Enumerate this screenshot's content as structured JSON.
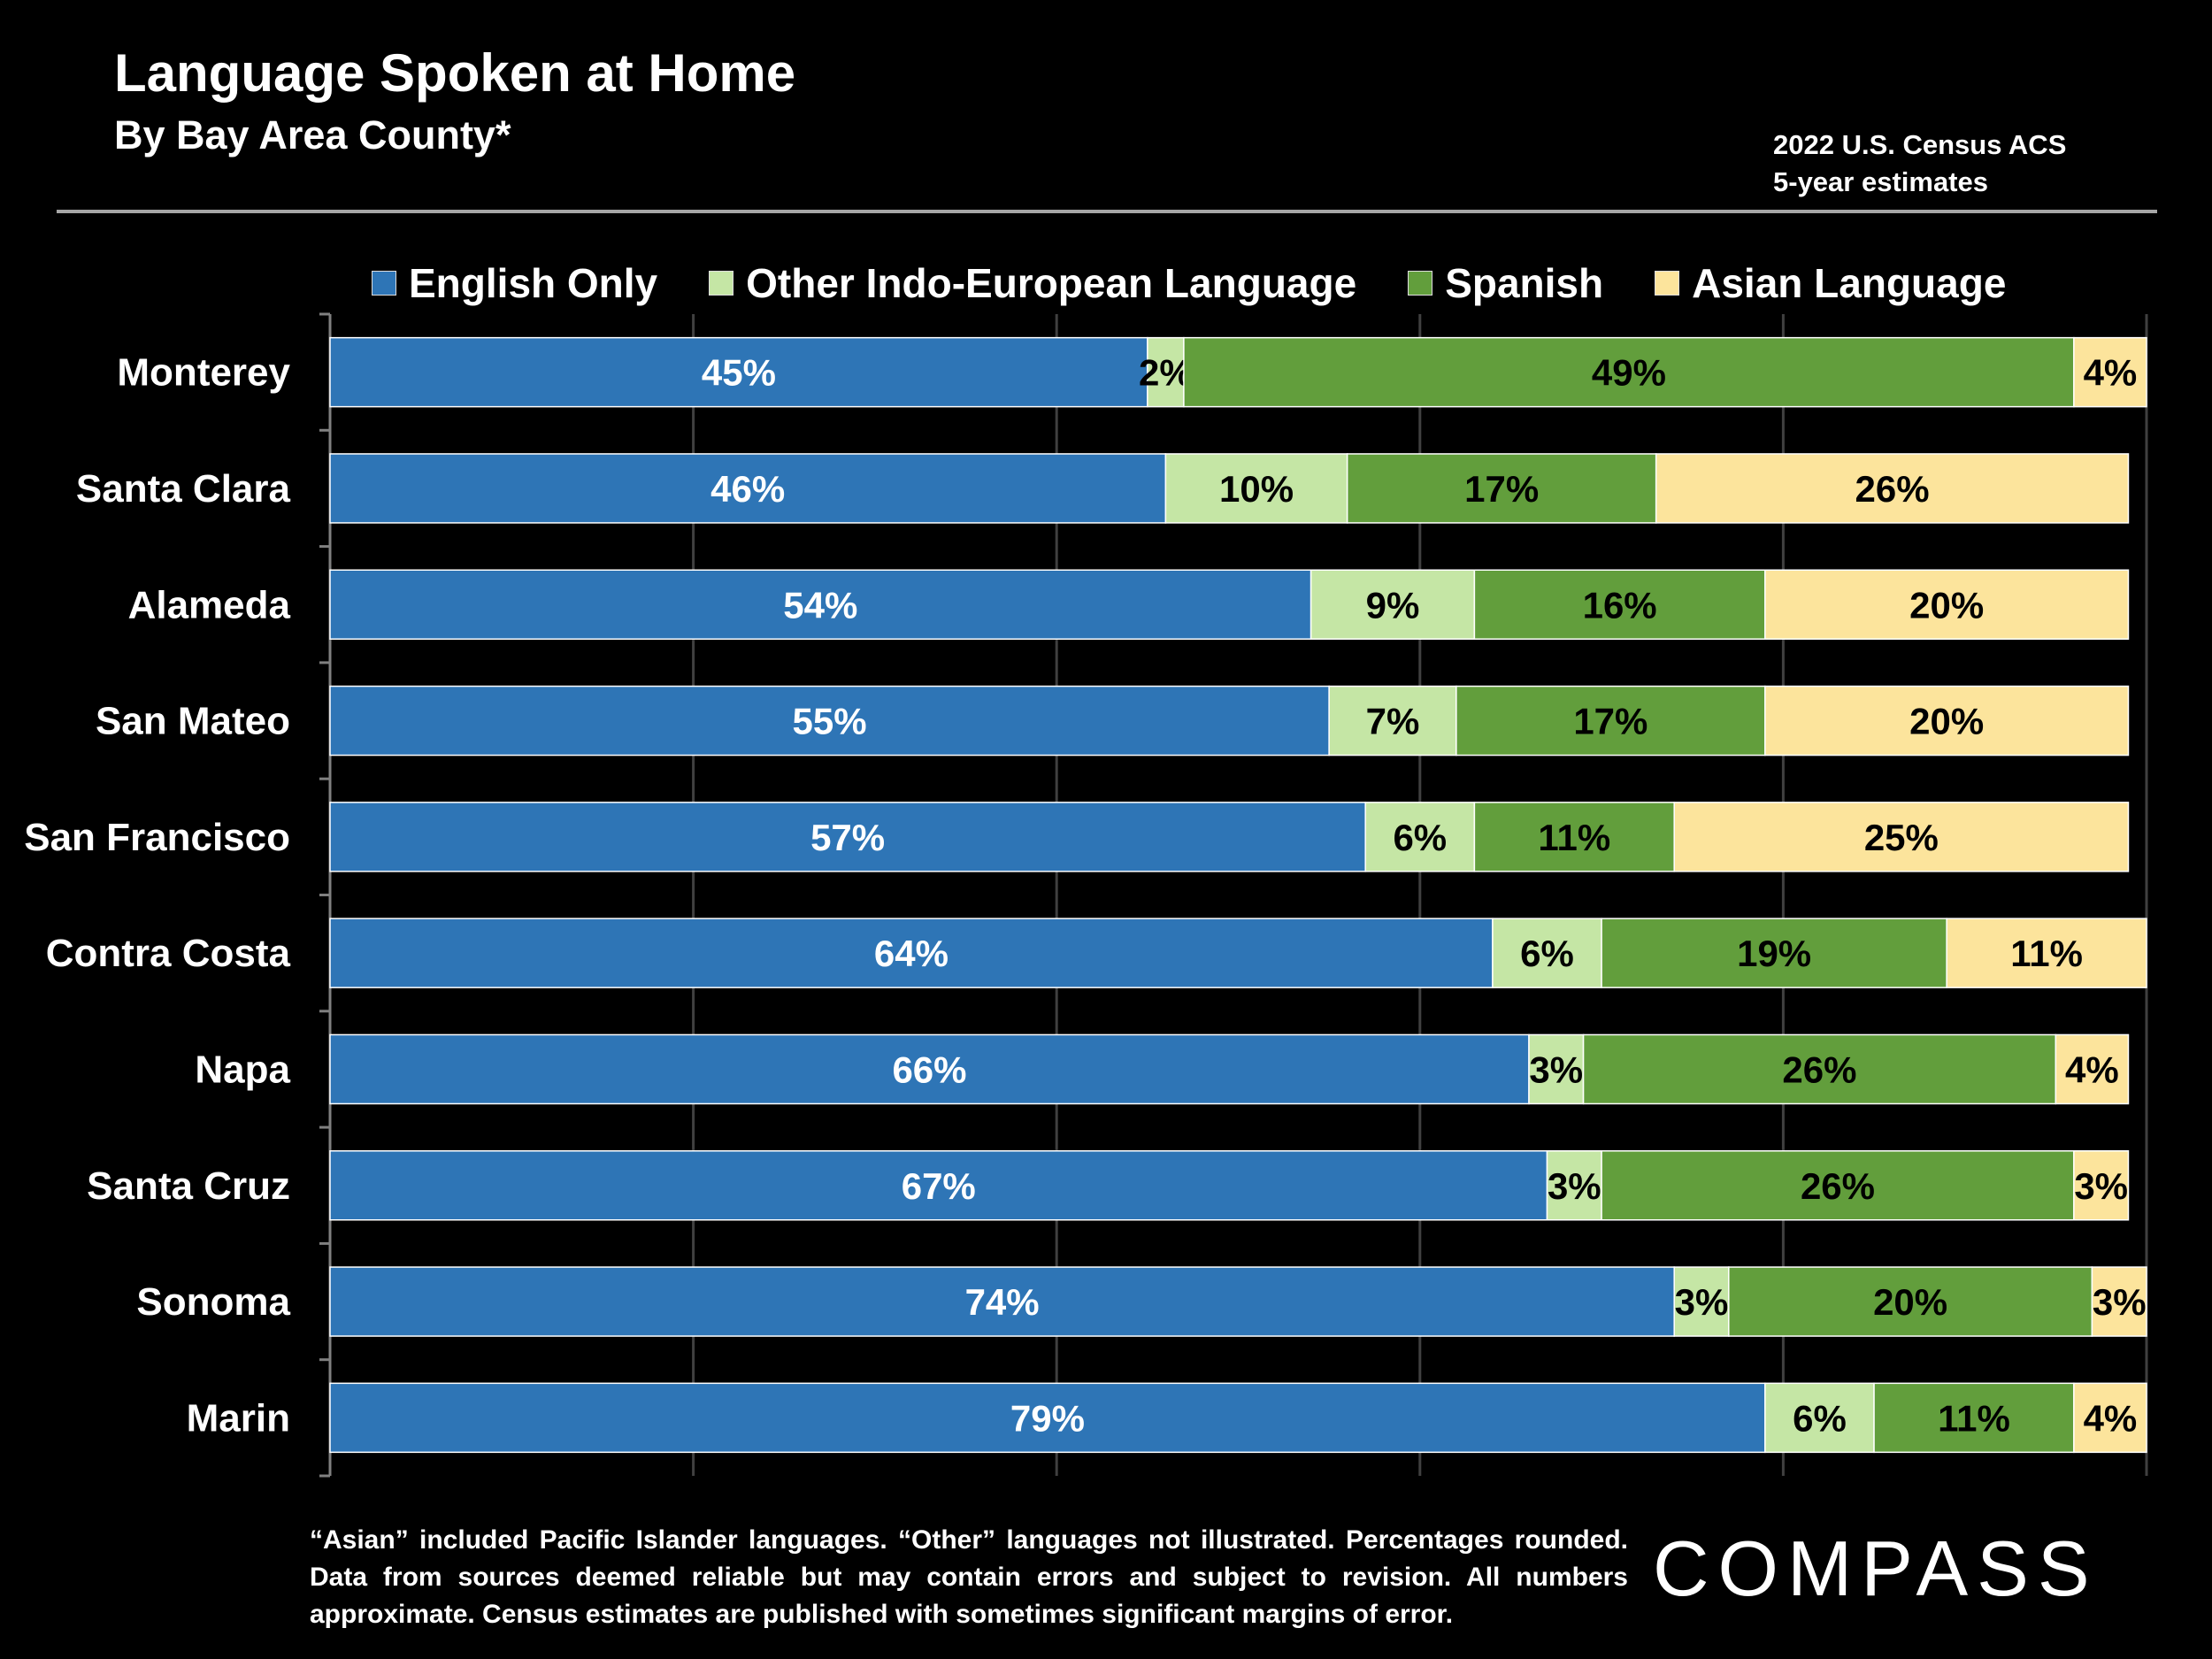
{
  "header": {
    "title": "Language Spoken at Home",
    "subtitle": "By Bay Area County*",
    "source_line1": "2022 U.S. Census ACS",
    "source_line2": "5-year estimates"
  },
  "colors": {
    "english": "#2e75b6",
    "other_indo_european": "#c5e6a5",
    "spanish": "#629e3c",
    "asian": "#fce49c",
    "gridline": "#404040",
    "axis": "#808080"
  },
  "chart_data": {
    "type": "bar",
    "orientation": "horizontal-stacked",
    "title": "Language Spoken at Home",
    "subtitle": "By Bay Area County*",
    "xlabel": "",
    "ylabel": "",
    "xlim": [
      0,
      100
    ],
    "grid": true,
    "legend_position": "top",
    "categories": [
      "Monterey",
      "Santa Clara",
      "Alameda",
      "San Mateo",
      "San Francisco",
      "Contra Costa",
      "Napa",
      "Santa Cruz",
      "Sonoma",
      "Marin"
    ],
    "series": [
      {
        "name": "English Only",
        "color_key": "english",
        "label_color": "#ffffff",
        "values": [
          45,
          46,
          54,
          55,
          57,
          64,
          66,
          67,
          74,
          79
        ]
      },
      {
        "name": "Other Indo-European Language",
        "color_key": "other_indo_european",
        "label_color": "#000000",
        "values": [
          2,
          10,
          9,
          7,
          6,
          6,
          3,
          3,
          3,
          6
        ]
      },
      {
        "name": "Spanish",
        "color_key": "spanish",
        "label_color": "#000000",
        "values": [
          49,
          17,
          16,
          17,
          11,
          19,
          26,
          26,
          20,
          11
        ]
      },
      {
        "name": "Asian Language",
        "color_key": "asian",
        "label_color": "#000000",
        "values": [
          4,
          26,
          20,
          20,
          25,
          11,
          4,
          3,
          3,
          4
        ]
      }
    ],
    "data_labels": [
      [
        "45%",
        "2%",
        "49%",
        "4%"
      ],
      [
        "46%",
        "10%",
        "17%",
        "26%"
      ],
      [
        "54%",
        "9%",
        "16%",
        "20%"
      ],
      [
        "55%",
        "7%",
        "17%",
        "20%"
      ],
      [
        "57%",
        "6%",
        "11%",
        "25%"
      ],
      [
        "64%",
        "6%",
        "19%",
        "11%"
      ],
      [
        "66%",
        "3%",
        "26%",
        "4%"
      ],
      [
        "67%",
        "3%",
        "26%",
        "3%"
      ],
      [
        "74%",
        "3%",
        "20%",
        "3%"
      ],
      [
        "79%",
        "6%",
        "11%",
        "4%"
      ]
    ]
  },
  "footnote": "“Asian” included Pacific Islander languages. “Other” languages not illustrated. Percentages rounded. Data from sources deemed reliable but may contain errors and subject to revision. All numbers approximate. Census estimates are published with sometimes significant margins of error.",
  "logo": {
    "text": "COMPASS"
  }
}
